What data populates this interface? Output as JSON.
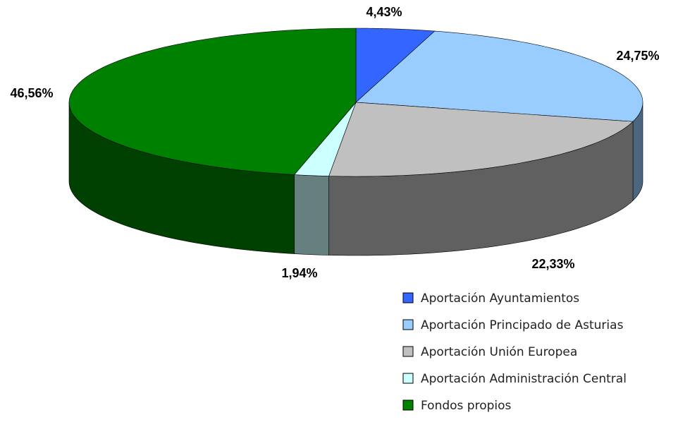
{
  "chart_data": {
    "type": "pie3d",
    "categories": [
      "Aportación Ayuntamientos",
      "Aportación Principado de Asturias",
      "Aportación Unión Europea",
      "Aportación Administración Central",
      "Fondos propios"
    ],
    "values": [
      4.43,
      24.75,
      22.33,
      1.94,
      46.56
    ],
    "value_labels": [
      "4,43%",
      "24,75%",
      "22,33%",
      "1,94%",
      "46,56%"
    ],
    "colors": [
      "#3366ff",
      "#99ccff",
      "#c0c0c0",
      "#ccffff",
      "#008000"
    ],
    "legend": "bottom-right"
  }
}
